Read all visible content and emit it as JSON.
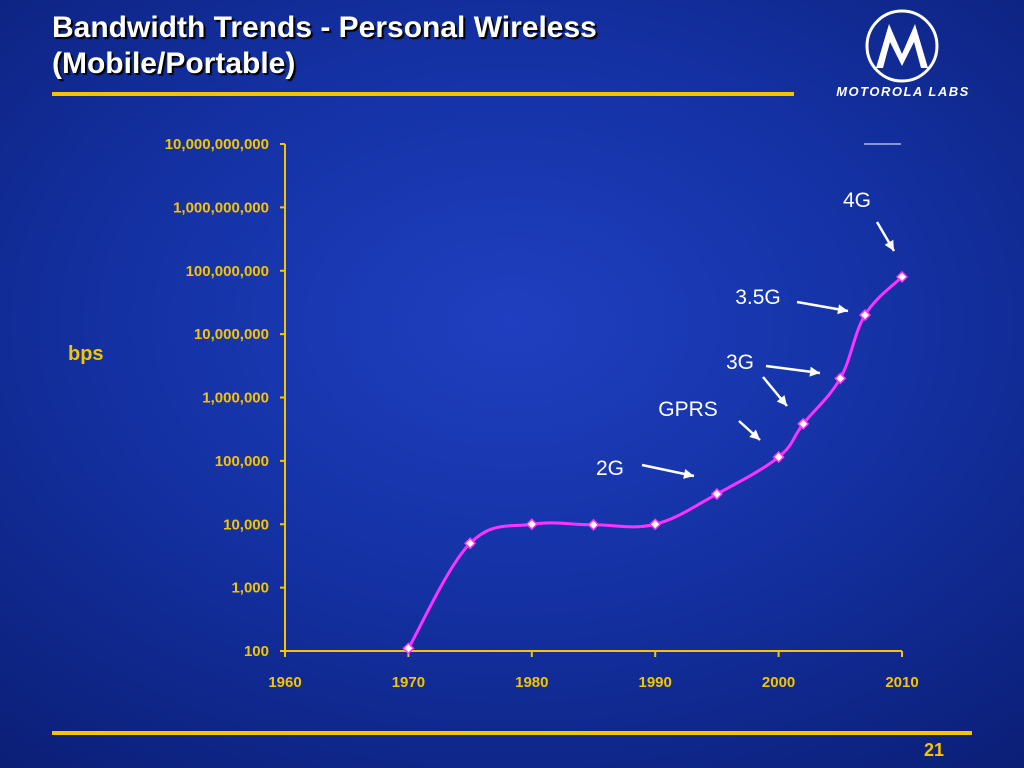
{
  "slide": {
    "title_line1": "Bandwidth Trends - Personal Wireless",
    "title_line2": "(Mobile/Portable)",
    "logo_text": "MOTOROLA LABS",
    "page_number": "21"
  },
  "colors": {
    "accent": "#f5c400",
    "series": "#ff33ff",
    "background": "#1431a3"
  },
  "chart_data": {
    "type": "line",
    "ylabel": "bps",
    "xlabel": "",
    "yscale": "log",
    "xlim": [
      1960,
      2010
    ],
    "ylim": [
      100,
      10000000000
    ],
    "x_ticks": [
      "1960",
      "1970",
      "1980",
      "1990",
      "2000",
      "2010"
    ],
    "y_ticks": [
      "100",
      "1,000",
      "10,000",
      "100,000",
      "1,000,000",
      "10,000,000",
      "100,000,000",
      "1,000,000,000",
      "10,000,000,000"
    ],
    "series": [
      {
        "points": [
          {
            "x": 1970,
            "y": 110
          },
          {
            "x": 1975,
            "y": 5000
          },
          {
            "x": 1980,
            "y": 10000
          },
          {
            "x": 1985,
            "y": 9800
          },
          {
            "x": 1990,
            "y": 10000
          },
          {
            "x": 1995,
            "y": 30000
          },
          {
            "x": 2000,
            "y": 115000
          },
          {
            "x": 2002,
            "y": 384000
          },
          {
            "x": 2005,
            "y": 2000000
          },
          {
            "x": 2007,
            "y": 20000000
          },
          {
            "x": 2010,
            "y": 80000000
          }
        ]
      }
    ],
    "annotations": [
      {
        "text": "2G",
        "x": 1995
      },
      {
        "text": "GPRS",
        "x": 2000
      },
      {
        "text": "3G",
        "x": 2002
      },
      {
        "text": "3.5G",
        "x": 2007
      },
      {
        "text": "4G",
        "x": 2010
      }
    ],
    "grid": false,
    "legend": "none"
  }
}
